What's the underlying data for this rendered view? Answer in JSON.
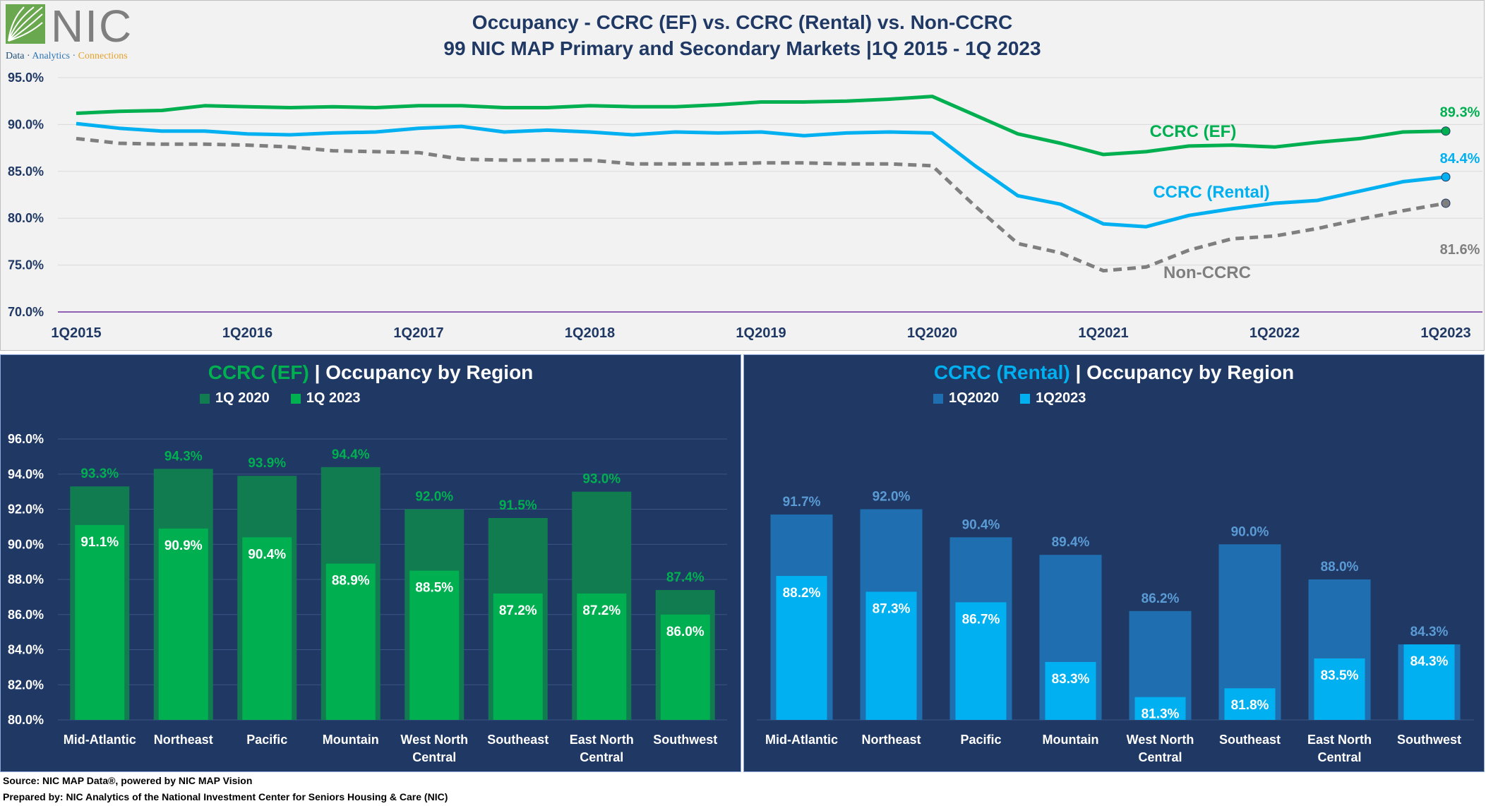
{
  "logo": {
    "name": "NIC",
    "tagline_parts": [
      "Data",
      " · ",
      "Analytics",
      " · ",
      "Connections"
    ],
    "colors": {
      "data": "#1f4e79",
      "analytics": "#2e75b6",
      "connections": "#e6a12b"
    }
  },
  "titles": {
    "line1": "Occupancy - CCRC (EF) vs. CCRC (Rental) vs. Non-CCRC",
    "line2": "99 NIC MAP Primary and Secondary Markets |1Q 2015 - 1Q 2023"
  },
  "footer": {
    "source": "Source: NIC MAP Data®, powered by NIC MAP Vision",
    "prepared": "Prepared by: NIC Analytics of the National Investment Center for Seniors Housing & Care (NIC)"
  },
  "colors": {
    "ef_line": "#00b050",
    "rental_line": "#00b0f0",
    "non_ccrc_line": "#7f7f7f",
    "ef_bar_2020": "#107c50",
    "ef_bar_2023": "#00b050",
    "rental_bar_2020": "#1f6fb0",
    "rental_bar_2023": "#00b0f0",
    "panel_bg": "#1f3864"
  },
  "chart_data": [
    {
      "type": "line",
      "x_tick_labels": [
        "1Q2015",
        "1Q2016",
        "1Q2017",
        "1Q2018",
        "1Q2019",
        "1Q2020",
        "1Q2021",
        "1Q2022",
        "1Q2023"
      ],
      "ylim": [
        70,
        95
      ],
      "y_tick_labels": [
        "70.0%",
        "75.0%",
        "80.0%",
        "85.0%",
        "90.0%",
        "95.0%"
      ],
      "grid": true,
      "series": [
        {
          "name": "CCRC (EF)",
          "end_label": "89.3%",
          "values": [
            91.2,
            91.4,
            91.5,
            92.0,
            91.9,
            91.8,
            91.9,
            91.8,
            92.0,
            92.0,
            91.8,
            91.8,
            92.0,
            91.9,
            91.9,
            92.1,
            92.4,
            92.4,
            92.5,
            92.7,
            93.0,
            91.0,
            89.0,
            88.0,
            86.8,
            87.1,
            87.7,
            87.8,
            87.6,
            88.1,
            88.5,
            89.2,
            89.3
          ]
        },
        {
          "name": "CCRC (Rental)",
          "end_label": "84.4%",
          "values": [
            90.1,
            89.6,
            89.3,
            89.3,
            89.0,
            88.9,
            89.1,
            89.2,
            89.6,
            89.8,
            89.2,
            89.4,
            89.2,
            88.9,
            89.2,
            89.1,
            89.2,
            88.8,
            89.1,
            89.2,
            89.1,
            85.6,
            82.4,
            81.5,
            79.4,
            79.1,
            80.3,
            81.0,
            81.6,
            81.9,
            82.9,
            83.9,
            84.4
          ]
        },
        {
          "name": "Non-CCRC",
          "end_label": "81.6%",
          "values": [
            88.5,
            88.0,
            87.9,
            87.9,
            87.8,
            87.6,
            87.2,
            87.1,
            87.0,
            86.3,
            86.2,
            86.2,
            86.2,
            85.8,
            85.8,
            85.8,
            85.9,
            85.9,
            85.8,
            85.8,
            85.6,
            81.3,
            77.3,
            76.3,
            74.4,
            74.8,
            76.6,
            77.8,
            78.1,
            78.9,
            79.9,
            80.8,
            81.6
          ]
        }
      ]
    },
    {
      "type": "bar",
      "title_colored": "CCRC (EF)",
      "title_rest": " | Occupancy by Region",
      "categories": [
        [
          "Mid-Atlantic"
        ],
        [
          "Northeast"
        ],
        [
          "Pacific"
        ],
        [
          "Mountain"
        ],
        [
          "West North",
          "Central"
        ],
        [
          "Southeast"
        ],
        [
          "East North",
          "Central"
        ],
        [
          "Southwest"
        ]
      ],
      "ylim": [
        80,
        96
      ],
      "y_tick_labels": [
        "80.0%",
        "82.0%",
        "84.0%",
        "86.0%",
        "88.0%",
        "90.0%",
        "92.0%",
        "94.0%",
        "96.0%"
      ],
      "series": [
        {
          "name": "1Q 2020",
          "values": [
            93.3,
            94.3,
            93.9,
            94.4,
            92.0,
            91.5,
            93.0,
            87.4
          ],
          "labels": [
            "93.3%",
            "94.3%",
            "93.9%",
            "94.4%",
            "92.0%",
            "91.5%",
            "93.0%",
            "87.4%"
          ]
        },
        {
          "name": "1Q 2023",
          "values": [
            91.1,
            90.9,
            90.4,
            88.9,
            88.5,
            87.2,
            87.2,
            86.0
          ],
          "labels": [
            "91.1%",
            "90.9%",
            "90.4%",
            "88.9%",
            "88.5%",
            "87.2%",
            "87.2%",
            "86.0%"
          ]
        }
      ]
    },
    {
      "type": "bar",
      "title_colored": "CCRC (Rental)",
      "title_rest": " | Occupancy by Region",
      "categories": [
        [
          "Mid-Atlantic"
        ],
        [
          "Northeast"
        ],
        [
          "Pacific"
        ],
        [
          "Mountain"
        ],
        [
          "West North",
          "Central"
        ],
        [
          "Southeast"
        ],
        [
          "East North",
          "Central"
        ],
        [
          "Southwest"
        ]
      ],
      "ylim": [
        80,
        96
      ],
      "series": [
        {
          "name": "1Q2020",
          "values": [
            91.7,
            92.0,
            90.4,
            89.4,
            86.2,
            90.0,
            88.0,
            84.3
          ],
          "labels": [
            "91.7%",
            "92.0%",
            "90.4%",
            "89.4%",
            "86.2%",
            "90.0%",
            "88.0%",
            "84.3%"
          ]
        },
        {
          "name": "1Q2023",
          "values": [
            88.2,
            87.3,
            86.7,
            83.3,
            81.3,
            81.8,
            83.5,
            84.3
          ],
          "labels": [
            "88.2%",
            "87.3%",
            "86.7%",
            "83.3%",
            "81.3%",
            "81.8%",
            "83.5%",
            "84.3%"
          ]
        }
      ]
    }
  ]
}
